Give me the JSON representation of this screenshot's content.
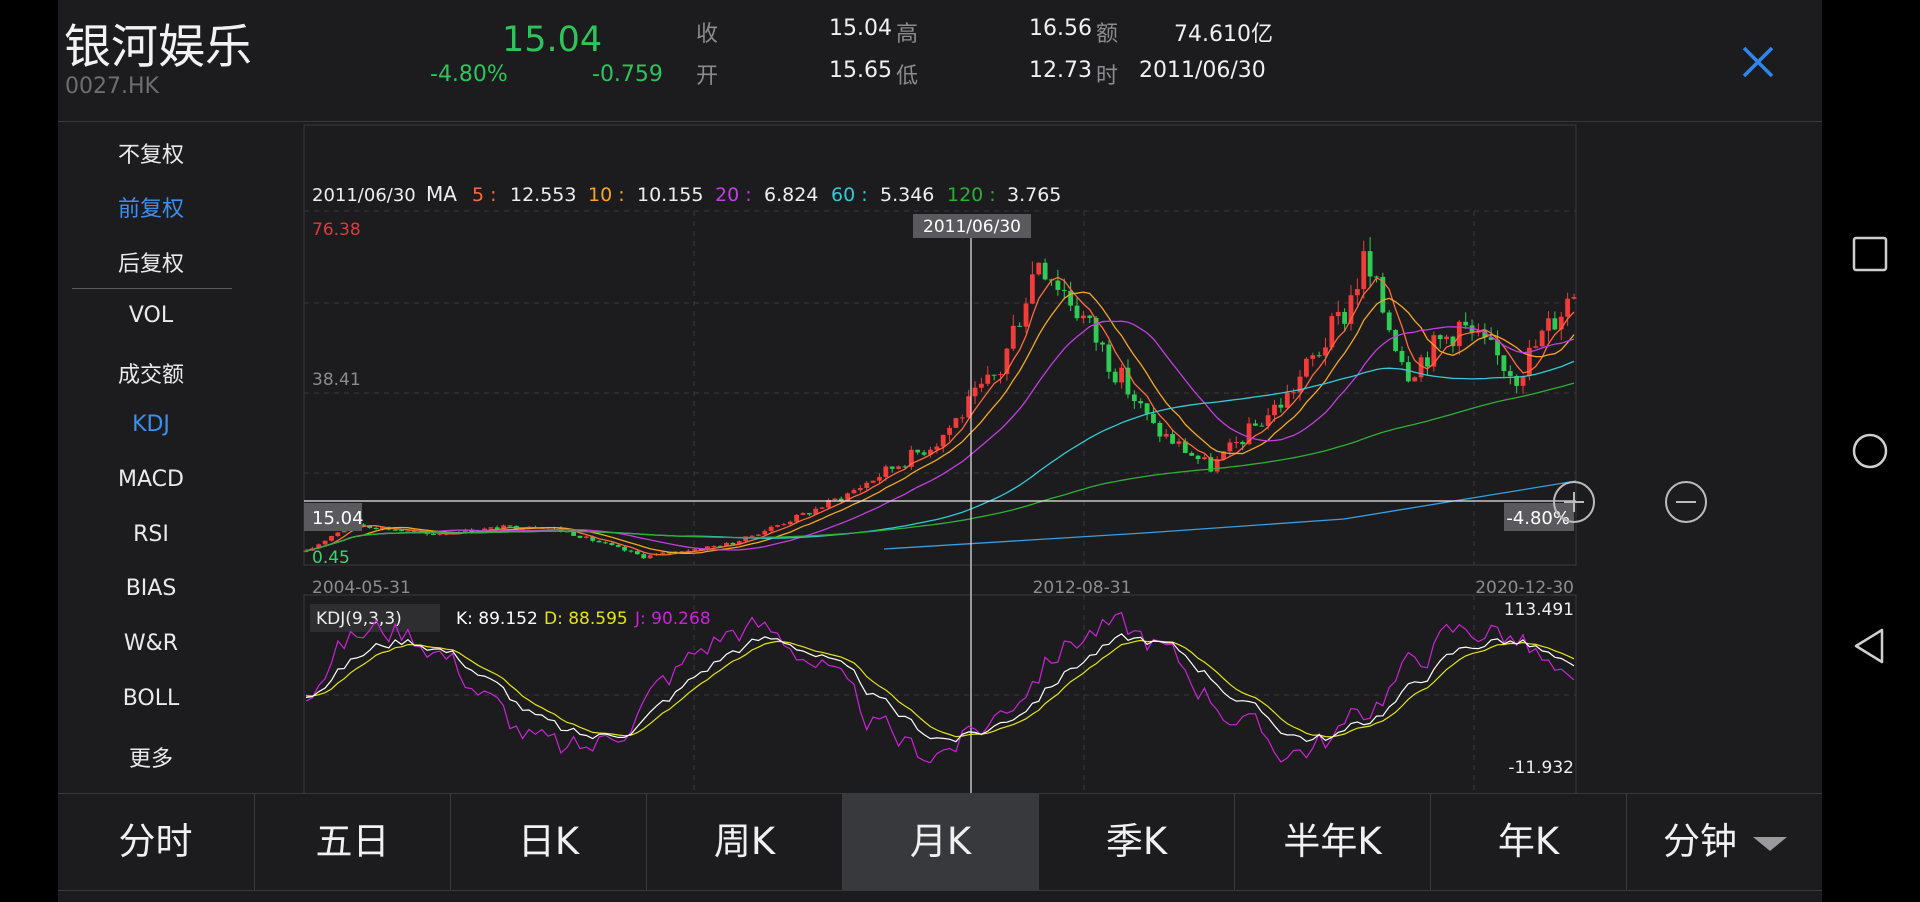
{
  "header": {
    "name": "银河娱乐",
    "code": "0027.HK",
    "price": "15.04",
    "change_pct": "-4.80%",
    "change": "-0.759",
    "close_label": "收",
    "close_value": "15.04",
    "open_label": "开",
    "open_value": "15.65",
    "high_label": "高",
    "high_value": "16.56",
    "low_label": "低",
    "low_value": "12.73",
    "amount_label": "额",
    "amount_value": "74.610亿",
    "time_label": "时",
    "time_value": "2011/06/30"
  },
  "side_menu": {
    "items": [
      {
        "label": "不复权",
        "active": false
      },
      {
        "label": "前复权",
        "active": true
      },
      {
        "label": "后复权",
        "active": false
      },
      {
        "label": "VOL",
        "active": false
      },
      {
        "label": "成交额",
        "active": false
      },
      {
        "label": "KDJ",
        "active": true
      },
      {
        "label": "MACD",
        "active": false
      },
      {
        "label": "RSI",
        "active": false
      },
      {
        "label": "BIAS",
        "active": false
      },
      {
        "label": "W&R",
        "active": false
      },
      {
        "label": "BOLL",
        "active": false
      },
      {
        "label": "更多",
        "active": false
      }
    ]
  },
  "chart": {
    "ma_date": "2011/06/30",
    "ma_title": "MA",
    "ma": [
      {
        "period": "5",
        "sep": " : ",
        "value": "12.553",
        "color": "#ff6a3d"
      },
      {
        "period": "10",
        "sep": " : ",
        "value": "10.155",
        "color": "#f5a623"
      },
      {
        "period": "20",
        "sep": " : ",
        "value": "6.824",
        "color": "#c03ee0"
      },
      {
        "period": "60",
        "sep": " : ",
        "value": "5.346",
        "color": "#35c9d6"
      },
      {
        "period": "120",
        "sep": " : ",
        "value": "3.765",
        "color": "#2fae36"
      }
    ],
    "y_max_label": "76.38",
    "y_mid_label": "38.41",
    "y_min_label": "0.45",
    "crosshair_date": "2011/06/30",
    "crosshair_price": "15.04",
    "crosshair_pct": "-4.80%",
    "x_labels": [
      "2004-05-31",
      "2012-08-31",
      "2020-12-30"
    ],
    "kdj_label": "KDJ(9,3,3)",
    "kdj_k": "K: 89.152",
    "kdj_d": "D: 88.595",
    "kdj_j": "J: 90.268",
    "kdj_max": "113.491",
    "kdj_min": "-11.932",
    "zoom_in_icon": "zoom-in-icon",
    "zoom_out_icon": "zoom-out-icon"
  },
  "chart_data": {
    "type": "candlestick",
    "x_range": [
      "2004-05-31",
      "2020-12-30"
    ],
    "ylim": [
      0.45,
      76.38
    ],
    "close_trend": [
      {
        "date": "2004-05-31",
        "value": 2.0
      },
      {
        "date": "2004-12-31",
        "value": 8.5
      },
      {
        "date": "2005-12-31",
        "value": 6.0
      },
      {
        "date": "2006-12-31",
        "value": 7.5
      },
      {
        "date": "2007-06-30",
        "value": 8.0
      },
      {
        "date": "2007-10-31",
        "value": 6.5
      },
      {
        "date": "2008-10-31",
        "value": 1.0
      },
      {
        "date": "2009-12-31",
        "value": 4.0
      },
      {
        "date": "2010-12-31",
        "value": 11.0
      },
      {
        "date": "2011-06-30",
        "value": 15.04
      },
      {
        "date": "2012-08-31",
        "value": 27.0
      },
      {
        "date": "2013-06-30",
        "value": 43.0
      },
      {
        "date": "2013-12-31",
        "value": 69.0
      },
      {
        "date": "2014-06-30",
        "value": 57.0
      },
      {
        "date": "2014-12-31",
        "value": 43.0
      },
      {
        "date": "2015-06-30",
        "value": 30.0
      },
      {
        "date": "2016-03-31",
        "value": 21.0
      },
      {
        "date": "2017-03-31",
        "value": 37.0
      },
      {
        "date": "2017-12-31",
        "value": 56.0
      },
      {
        "date": "2018-03-31",
        "value": 67.0
      },
      {
        "date": "2018-10-31",
        "value": 43.0
      },
      {
        "date": "2019-06-30",
        "value": 53.0
      },
      {
        "date": "2020-03-31",
        "value": 42.0
      },
      {
        "date": "2020-12-30",
        "value": 61.0
      }
    ],
    "colors": {
      "up": "#f23b3b",
      "down": "#2ecc55",
      "k": "#ffffff",
      "d": "#e3e31b",
      "j": "#cc22d8"
    }
  },
  "bottom_tabs": [
    {
      "label": "分时",
      "active": false
    },
    {
      "label": "五日",
      "active": false
    },
    {
      "label": "日K",
      "active": false
    },
    {
      "label": "周K",
      "active": false
    },
    {
      "label": "月K",
      "active": true
    },
    {
      "label": "季K",
      "active": false
    },
    {
      "label": "半年K",
      "active": false
    },
    {
      "label": "年K",
      "active": false
    },
    {
      "label": "分钟",
      "active": false
    }
  ],
  "system_nav": {
    "recent_icon": "square-icon",
    "home_icon": "circle-icon",
    "back_icon": "back-triangle-icon"
  }
}
